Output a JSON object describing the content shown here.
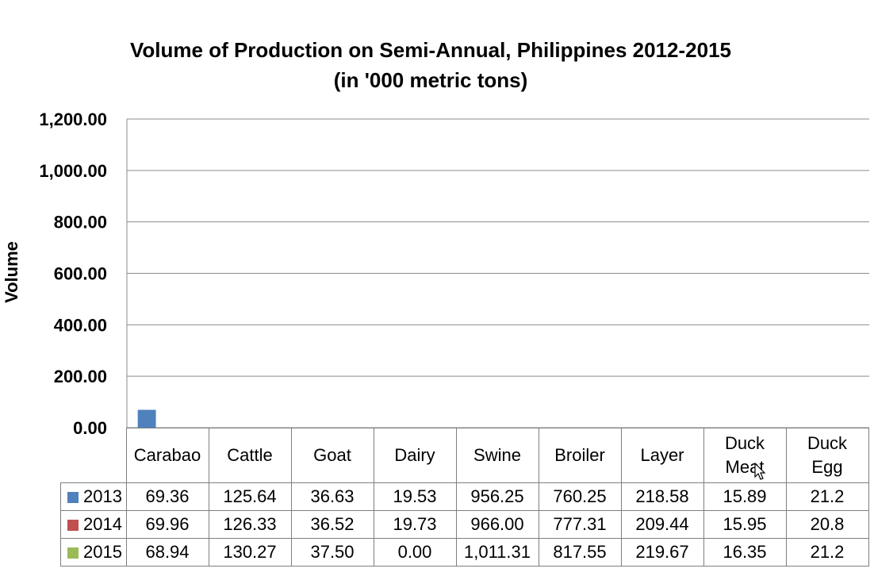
{
  "chart_data": {
    "type": "bar",
    "title": [
      "Volume of Production on Semi-Annual, Philippines 2012-2015",
      "(in '000 metric tons)"
    ],
    "ylabel": "Volume",
    "xlabel": "",
    "ylim": [
      0,
      1200
    ],
    "yticks": [
      "1,200.00",
      "1,000.00",
      "800.00",
      "600.00",
      "400.00",
      "200.00",
      "0.00"
    ],
    "grid": true,
    "legend": "data-table",
    "categories": [
      "Carabao",
      "Cattle",
      "Goat",
      "Dairy",
      "Swine",
      "Broiler",
      "Layer",
      "Duck Meat",
      "Duck Egg"
    ],
    "category_lines": [
      [
        "Carabao"
      ],
      [
        "Cattle"
      ],
      [
        "Goat"
      ],
      [
        "Dairy"
      ],
      [
        "Swine"
      ],
      [
        "Broiler"
      ],
      [
        "Layer"
      ],
      [
        "Duck",
        "Meat"
      ],
      [
        "Duck",
        "Egg"
      ]
    ],
    "series": [
      {
        "name": "2013",
        "color": "#4f81bd",
        "values": [
          69.36,
          125.64,
          36.63,
          19.53,
          956.25,
          760.25,
          218.58,
          15.89,
          21.2
        ],
        "labels": [
          "69.36",
          "125.64",
          "36.63",
          "19.53",
          "956.25",
          "760.25",
          "218.58",
          "15.89",
          "21.2"
        ]
      },
      {
        "name": "2014",
        "color": "#c0504d",
        "values": [
          69.96,
          126.33,
          36.52,
          19.73,
          966.0,
          777.31,
          209.44,
          15.95,
          20.8
        ],
        "labels": [
          "69.96",
          "126.33",
          "36.52",
          "19.73",
          "966.00",
          "777.31",
          "209.44",
          "15.95",
          "20.8"
        ]
      },
      {
        "name": "2015",
        "color": "#9bbb59",
        "values": [
          68.94,
          130.27,
          37.5,
          0.0,
          1011.31,
          817.55,
          219.67,
          16.35,
          21.2
        ],
        "labels": [
          "68.94",
          "130.27",
          "37.50",
          "0.00",
          "1,011.31",
          "817.55",
          "219.67",
          "16.35",
          "21.2"
        ]
      }
    ],
    "visible_bars": [
      {
        "series": "2013",
        "category": "Carabao"
      }
    ]
  }
}
